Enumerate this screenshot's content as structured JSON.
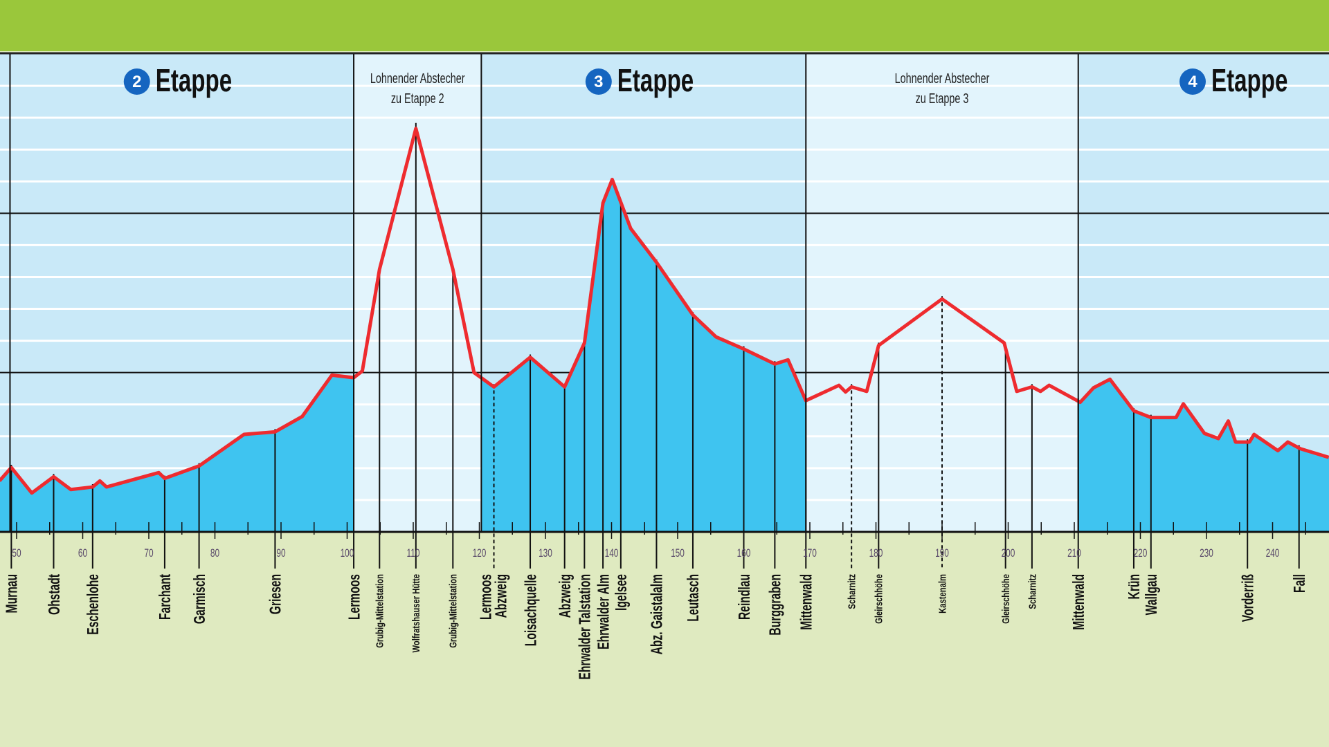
{
  "chart_data": {
    "type": "area",
    "title": "",
    "xlabel": "",
    "ylabel": "",
    "x_unit": "km",
    "y_unit": "m",
    "xlim": [
      47.4,
      250
    ],
    "ylim": [
      500,
      2000
    ],
    "x_ticks": [
      50,
      60,
      70,
      80,
      90,
      100,
      110,
      120,
      130,
      140,
      150,
      160,
      170,
      180,
      190,
      200,
      210,
      220,
      230,
      240
    ],
    "major_grid_y": [
      1000,
      1500
    ],
    "minor_grid_step": 100,
    "grid": true,
    "colors": {
      "header_band": "#9ac73b",
      "stage_bg": "#c9e9f8",
      "detour_bg": "#e2f4fc",
      "fill": "#3fc4f0",
      "line": "#ee2b2f",
      "ground": "#dfeac0",
      "badge": "#1565c0"
    },
    "sections": [
      {
        "type": "stage",
        "number": "2",
        "label": "Etappe",
        "start_km": 49.0,
        "end_km": 101.0
      },
      {
        "type": "detour",
        "label_lines": [
          "Lohnender Abstecher",
          "zu Etappe 2"
        ],
        "start_km": 101.0,
        "end_km": 120.3
      },
      {
        "type": "stage",
        "number": "3",
        "label": "Etappe",
        "start_km": 120.3,
        "end_km": 169.4
      },
      {
        "type": "detour",
        "label_lines": [
          "Lohnender Abstecher",
          "zu Etappe 3"
        ],
        "start_km": 169.4,
        "end_km": 210.6
      },
      {
        "type": "stage",
        "number": "4",
        "label": "Etappe",
        "start_km": 210.6,
        "end_km": 260
      }
    ],
    "profile": [
      [
        47.4,
        660
      ],
      [
        49.2,
        702
      ],
      [
        52.3,
        622
      ],
      [
        55.6,
        673
      ],
      [
        58.2,
        633
      ],
      [
        61.5,
        641
      ],
      [
        62.6,
        660
      ],
      [
        63.6,
        641
      ],
      [
        71.5,
        686
      ],
      [
        72.4,
        668
      ],
      [
        77.6,
        707
      ],
      [
        84.4,
        806
      ],
      [
        89.1,
        814
      ],
      [
        93.2,
        862
      ],
      [
        97.7,
        992
      ],
      [
        101.0,
        984
      ],
      [
        102.3,
        1005
      ],
      [
        104.9,
        1324
      ],
      [
        110.4,
        1766
      ],
      [
        116.0,
        1324
      ],
      [
        119.2,
        1000
      ],
      [
        122.2,
        955
      ],
      [
        127.7,
        1048
      ],
      [
        132.9,
        955
      ],
      [
        135.9,
        1093
      ],
      [
        138.7,
        1532
      ],
      [
        140.1,
        1606
      ],
      [
        142.9,
        1452
      ],
      [
        146.8,
        1346
      ],
      [
        152.3,
        1181
      ],
      [
        155.8,
        1112
      ],
      [
        160.0,
        1074
      ],
      [
        164.7,
        1027
      ],
      [
        166.7,
        1040
      ],
      [
        169.4,
        912
      ],
      [
        174.4,
        960
      ],
      [
        175.4,
        939
      ],
      [
        176.3,
        955
      ],
      [
        178.6,
        941
      ],
      [
        180.4,
        1085
      ],
      [
        190.0,
        1231
      ],
      [
        199.4,
        1093
      ],
      [
        201.3,
        941
      ],
      [
        203.6,
        955
      ],
      [
        204.9,
        941
      ],
      [
        206.2,
        960
      ],
      [
        210.9,
        907
      ],
      [
        212.9,
        952
      ],
      [
        215.4,
        979
      ],
      [
        219.0,
        880
      ],
      [
        221.6,
        859
      ],
      [
        225.4,
        859
      ],
      [
        226.5,
        902
      ],
      [
        229.7,
        809
      ],
      [
        231.8,
        793
      ],
      [
        233.3,
        848
      ],
      [
        234.4,
        782
      ],
      [
        236.5,
        782
      ],
      [
        237.2,
        806
      ],
      [
        240.8,
        755
      ],
      [
        242.3,
        782
      ],
      [
        244.2,
        761
      ],
      [
        248.5,
        734
      ]
    ],
    "stations": [
      {
        "name": "Murnau",
        "km": 49.2
      },
      {
        "name": "Ohstadt",
        "km": 55.6
      },
      {
        "name": "Eschenlohe",
        "km": 61.5
      },
      {
        "name": "Farchant",
        "km": 72.4
      },
      {
        "name": "Garmisch",
        "km": 77.6
      },
      {
        "name": "Griesen",
        "km": 89.1
      },
      {
        "name": "Lermoos",
        "km": 101.0
      },
      {
        "name": "Grubig-Mittelstation",
        "km": 104.9,
        "small": true
      },
      {
        "name": "Wolfratshauser Hütte",
        "km": 110.4,
        "small": true
      },
      {
        "name": "Grubig-Mittelstation",
        "km": 116.0,
        "small": true
      },
      {
        "name": "Lermoos Abzweig",
        "km": 122.2,
        "wrap": true,
        "dashed": true
      },
      {
        "name": "Loisachquelle",
        "km": 127.7
      },
      {
        "name": "Abzweig",
        "km": 132.9
      },
      {
        "name": "Ehrwalder Talstation",
        "km": 135.9
      },
      {
        "name": "Ehrwalder Alm",
        "km": 138.7
      },
      {
        "name": "Igelsee",
        "km": 141.4
      },
      {
        "name": "Abz. Gaistalalm",
        "km": 146.8
      },
      {
        "name": "Leutasch",
        "km": 152.3
      },
      {
        "name": "Reindlau",
        "km": 160.0
      },
      {
        "name": "Burggraben",
        "km": 164.7
      },
      {
        "name": "Mittenwald",
        "km": 169.4
      },
      {
        "name": "Scharnitz",
        "km": 176.3,
        "small": true,
        "dashed": true
      },
      {
        "name": "Gleirschhöhe",
        "km": 180.4,
        "small": true
      },
      {
        "name": "Kastenalm",
        "km": 190.0,
        "small": true,
        "dashed": true
      },
      {
        "name": "Gleirschhöhe",
        "km": 199.6,
        "small": true
      },
      {
        "name": "Scharnitz",
        "km": 203.6,
        "small": true
      },
      {
        "name": "Mittenwald",
        "km": 210.6
      },
      {
        "name": "Krün",
        "km": 219.0
      },
      {
        "name": "Wallgau",
        "km": 221.6
      },
      {
        "name": "Vorderriß",
        "km": 236.2
      },
      {
        "name": "Fall",
        "km": 244.0
      }
    ]
  }
}
